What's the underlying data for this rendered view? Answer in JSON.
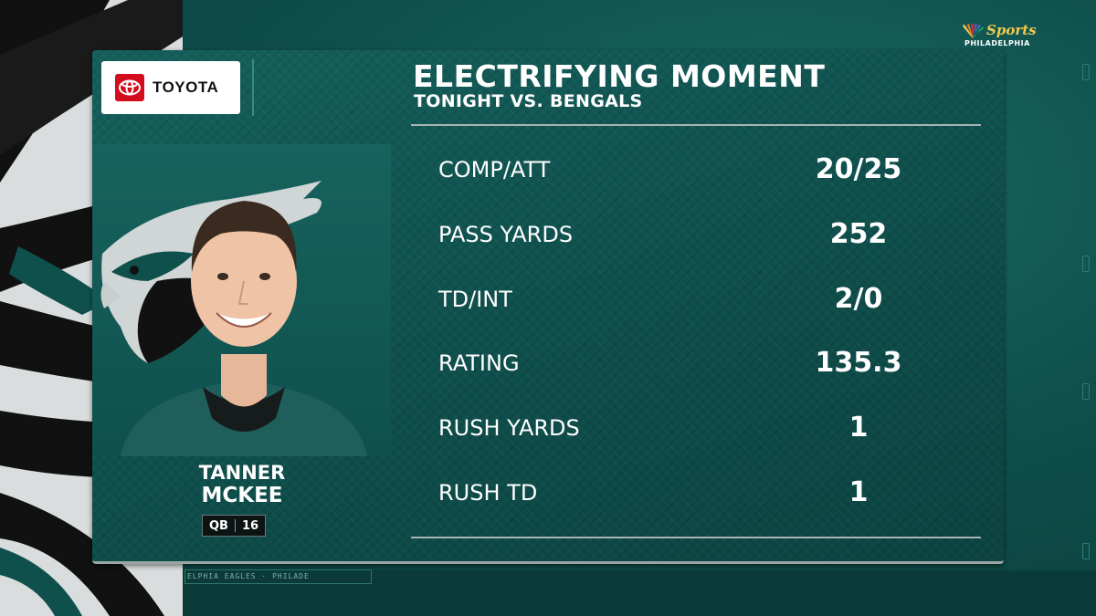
{
  "network": {
    "brand": "Sports",
    "region": "PHILADELPHIA"
  },
  "sponsor": {
    "name": "TOYOTA"
  },
  "graphic": {
    "title": "ELECTRIFYING MOMENT",
    "subtitle": "TONIGHT VS. BENGALS"
  },
  "player": {
    "first_name": "TANNER",
    "last_name": "MCKEE",
    "position": "QB",
    "number": "16"
  },
  "stats": [
    {
      "label": "COMP/ATT",
      "value": "20/25"
    },
    {
      "label": "PASS YARDS",
      "value": "252"
    },
    {
      "label": "TD/INT",
      "value": "2/0"
    },
    {
      "label": "RATING",
      "value": "135.3"
    },
    {
      "label": "RUSH YARDS",
      "value": "1"
    },
    {
      "label": "RUSH TD",
      "value": "1"
    }
  ],
  "ticker": {
    "text": "ELPHIA EAGLES · PHILADE"
  },
  "colors": {
    "eagles_green": "#0f504d",
    "sponsor_red": "#d40d1e",
    "network_gold": "#f2c94c"
  }
}
